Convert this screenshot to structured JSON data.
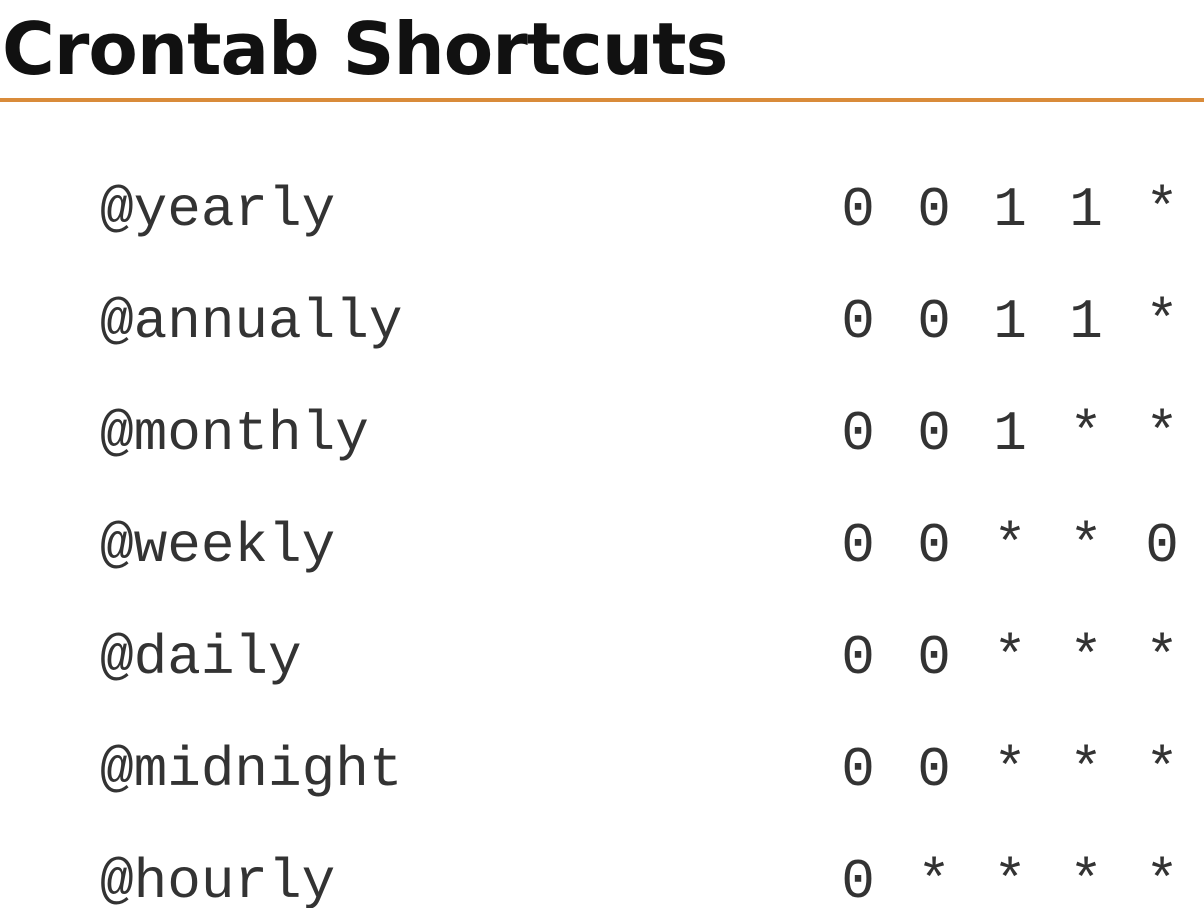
{
  "title": "Crontab Shortcuts",
  "shortcuts": [
    {
      "name": "@yearly",
      "fields": [
        "0",
        "0",
        "1",
        "1",
        "*"
      ]
    },
    {
      "name": "@annually",
      "fields": [
        "0",
        "0",
        "1",
        "1",
        "*"
      ]
    },
    {
      "name": "@monthly",
      "fields": [
        "0",
        "0",
        "1",
        "*",
        "*"
      ]
    },
    {
      "name": "@weekly",
      "fields": [
        "0",
        "0",
        "*",
        "*",
        "0"
      ]
    },
    {
      "name": "@daily",
      "fields": [
        "0",
        "0",
        "*",
        "*",
        "*"
      ]
    },
    {
      "name": "@midnight",
      "fields": [
        "0",
        "0",
        "*",
        "*",
        "*"
      ]
    },
    {
      "name": "@hourly",
      "fields": [
        "0",
        "*",
        "*",
        "*",
        "*"
      ]
    }
  ]
}
